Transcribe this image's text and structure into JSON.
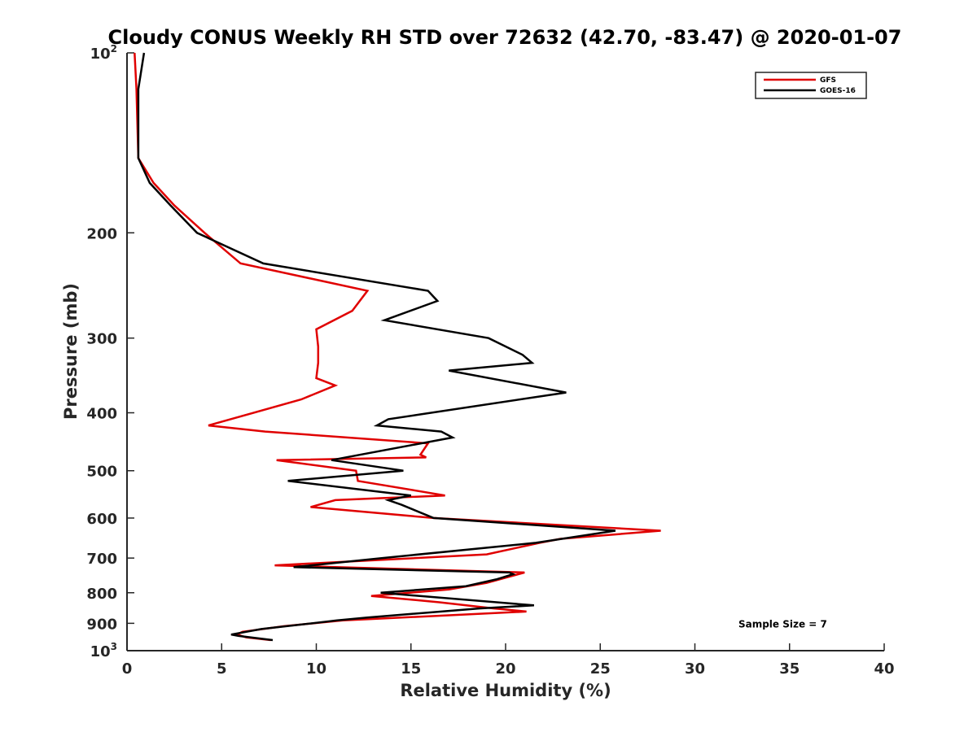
{
  "chart_data": {
    "type": "line",
    "title": "Cloudy CONUS Weekly RH STD over 72632 (42.70, -83.47) @ 2020-01-07",
    "xlabel": "Relative Humidity (%)",
    "ylabel": "Pressure (mb)",
    "xlim": [
      0,
      40
    ],
    "ylim": [
      100,
      1000
    ],
    "y_scale": "log",
    "y_reversed": true,
    "grid": false,
    "legend_position": "top-right",
    "x_ticks": [
      "0",
      "5",
      "10",
      "15",
      "20",
      "25",
      "30",
      "35",
      "40"
    ],
    "y_ticks": [
      {
        "base": "10",
        "exp": "2",
        "value": 100
      },
      {
        "base": "200",
        "exp": "",
        "value": 200
      },
      {
        "base": "300",
        "exp": "",
        "value": 300
      },
      {
        "base": "400",
        "exp": "",
        "value": 400
      },
      {
        "base": "500",
        "exp": "",
        "value": 500
      },
      {
        "base": "600",
        "exp": "",
        "value": 600
      },
      {
        "base": "700",
        "exp": "",
        "value": 700
      },
      {
        "base": "800",
        "exp": "",
        "value": 800
      },
      {
        "base": "900",
        "exp": "",
        "value": 900
      },
      {
        "base": "10",
        "exp": "3",
        "value": 1000
      }
    ],
    "series": [
      {
        "name": "GFS",
        "color": "#e00000",
        "points": [
          [
            0.4,
            100
          ],
          [
            0.5,
            115
          ],
          [
            0.6,
            150
          ],
          [
            1.4,
            165
          ],
          [
            2.5,
            180
          ],
          [
            4.1,
            200
          ],
          [
            6.0,
            225
          ],
          [
            12.7,
            250
          ],
          [
            11.9,
            270
          ],
          [
            10.0,
            290
          ],
          [
            10.1,
            310
          ],
          [
            10.1,
            330
          ],
          [
            10.0,
            350
          ],
          [
            11.0,
            360
          ],
          [
            9.2,
            380
          ],
          [
            4.3,
            420
          ],
          [
            7.3,
            430
          ],
          [
            15.9,
            450
          ],
          [
            15.5,
            470
          ],
          [
            15.8,
            475
          ],
          [
            7.9,
            480
          ],
          [
            12.1,
            500
          ],
          [
            12.2,
            520
          ],
          [
            16.8,
            550
          ],
          [
            11.0,
            560
          ],
          [
            9.7,
            575
          ],
          [
            16.2,
            600
          ],
          [
            28.2,
            630
          ],
          [
            22.9,
            650
          ],
          [
            21.8,
            660
          ],
          [
            19.0,
            690
          ],
          [
            7.8,
            720
          ],
          [
            21.0,
            740
          ],
          [
            19.0,
            770
          ],
          [
            17.0,
            790
          ],
          [
            12.9,
            810
          ],
          [
            16.5,
            830
          ],
          [
            19.4,
            850
          ],
          [
            21.1,
            860
          ],
          [
            11.4,
            890
          ],
          [
            8.3,
            910
          ],
          [
            6.1,
            930
          ],
          [
            5.8,
            940
          ],
          [
            6.3,
            950
          ],
          [
            7.6,
            960
          ]
        ]
      },
      {
        "name": "GOES-16",
        "color": "#000000",
        "points": [
          [
            0.9,
            100
          ],
          [
            0.6,
            115
          ],
          [
            0.6,
            150
          ],
          [
            1.2,
            165
          ],
          [
            2.3,
            180
          ],
          [
            3.7,
            200
          ],
          [
            7.2,
            225
          ],
          [
            15.9,
            250
          ],
          [
            16.4,
            260
          ],
          [
            13.6,
            280
          ],
          [
            19.1,
            300
          ],
          [
            20.9,
            320
          ],
          [
            21.4,
            330
          ],
          [
            17.0,
            340
          ],
          [
            23.2,
            370
          ],
          [
            13.8,
            410
          ],
          [
            13.2,
            420
          ],
          [
            16.6,
            430
          ],
          [
            17.2,
            440
          ],
          [
            10.8,
            480
          ],
          [
            14.6,
            500
          ],
          [
            8.5,
            520
          ],
          [
            15.0,
            550
          ],
          [
            13.8,
            560
          ],
          [
            14.5,
            570
          ],
          [
            16.2,
            600
          ],
          [
            25.8,
            630
          ],
          [
            21.6,
            660
          ],
          [
            13.5,
            700
          ],
          [
            8.8,
            725
          ],
          [
            20.2,
            740
          ],
          [
            20.4,
            745
          ],
          [
            19.5,
            760
          ],
          [
            17.9,
            780
          ],
          [
            13.4,
            800
          ],
          [
            21.5,
            840
          ],
          [
            18.6,
            850
          ],
          [
            12.7,
            880
          ],
          [
            11.1,
            890
          ],
          [
            7.1,
            920
          ],
          [
            5.5,
            940
          ],
          [
            5.9,
            945
          ],
          [
            7.7,
            960
          ]
        ]
      }
    ],
    "annotations": [
      {
        "text": "Sample Size = 7",
        "x": 32.3,
        "pressure": 900
      }
    ]
  }
}
